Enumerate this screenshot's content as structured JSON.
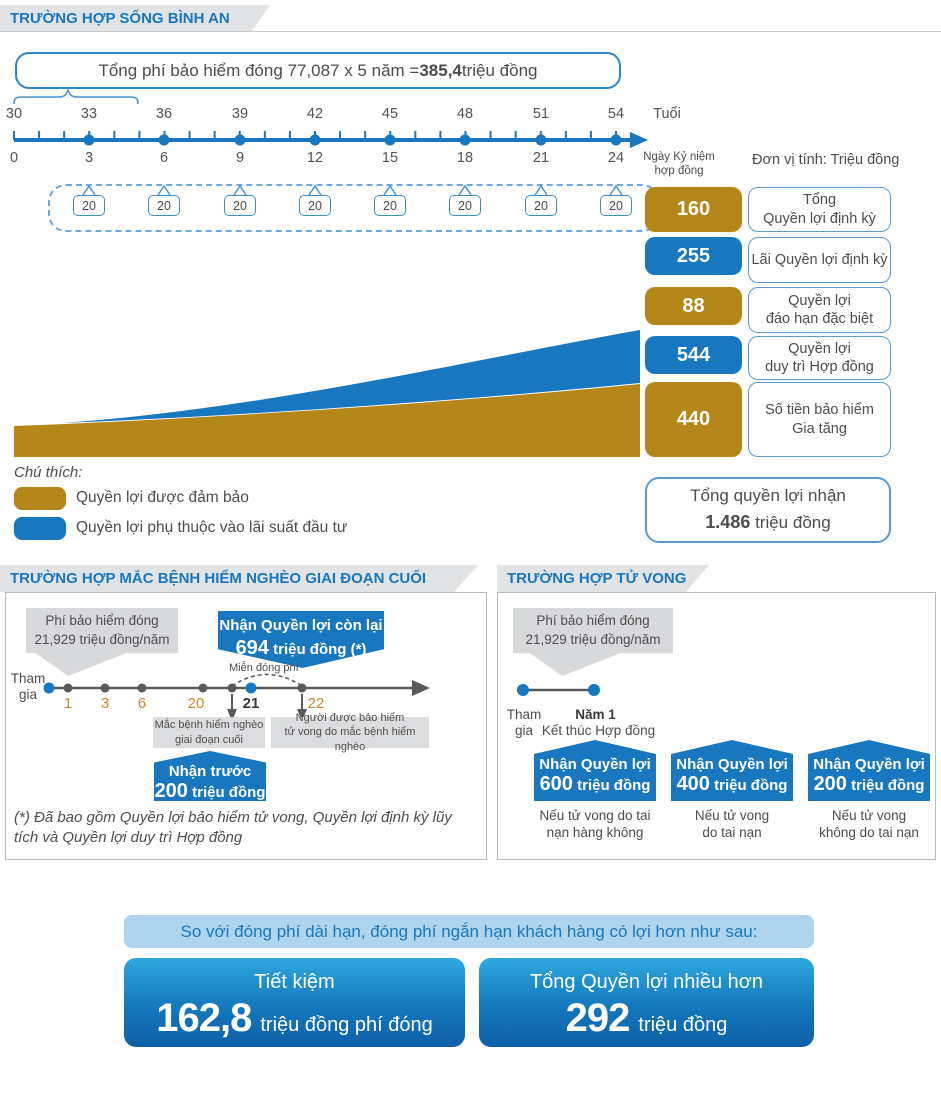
{
  "colors": {
    "blue": "#1877BE",
    "gold": "#B5871A",
    "banner_gray": "#E2E3E5",
    "light_blue": "#AED4EE"
  },
  "section1": {
    "title": "TRƯỜNG HỢP SỐNG BÌNH AN",
    "premium": {
      "prefix": "Tổng phí bảo hiểm đóng 77,087 x 5 năm = ",
      "bold": "385,4",
      "suffix": " triệu đồng"
    },
    "timeline": {
      "ages": [
        "30",
        "33",
        "36",
        "39",
        "42",
        "45",
        "48",
        "51",
        "54"
      ],
      "age_unit": "Tuổi",
      "years": [
        "0",
        "3",
        "6",
        "9",
        "12",
        "15",
        "18",
        "21",
        "24"
      ],
      "year_unit": "Ngày Kỷ niệm\nhợp đồng",
      "payouts": [
        "20",
        "20",
        "20",
        "20",
        "20",
        "20",
        "20",
        "20"
      ]
    },
    "unit_note": "Đơn vị tính: Triệu đồng",
    "benefits": [
      {
        "value": "160",
        "color": "gold",
        "label": "Tổng\nQuyền lợi định kỳ"
      },
      {
        "value": "255",
        "color": "blue",
        "label": "Lãi Quyền lợi định kỳ"
      },
      {
        "value": "88",
        "color": "gold",
        "label": "Quyền lợi\nđáo hạn đặc biệt"
      },
      {
        "value": "544",
        "color": "blue",
        "label": "Quyền lợi\nduy trì Hợp đồng"
      },
      {
        "value": "440",
        "color": "gold",
        "label": "Số tiền bảo hiểm\nGia tăng"
      }
    ],
    "legend_title": "Chú thích:",
    "legend": [
      {
        "color": "gold",
        "label": "Quyền lợi được đảm bảo"
      },
      {
        "color": "blue",
        "label": "Quyền lợi phụ thuộc vào lãi suất đầu tư"
      }
    ],
    "total": {
      "line1": "Tổng quyền lợi nhận",
      "bold": "1.486",
      "suffix": " triệu đồng"
    }
  },
  "section2": {
    "title": "TRƯỜNG HỢP MẮC BỆNH HIỂM NGHÈO GIAI ĐOẠN CUỐI",
    "premium_callout": "Phí bảo hiểm đóng\n21,929 triệu đồng/năm",
    "remaining": {
      "line1": "Nhận Quyền lợi còn lại",
      "bold": "694",
      "suffix": " triệu đồng (*)"
    },
    "waiver": "Miễn đóng phí",
    "start": "Tham\ngia",
    "ticks": [
      {
        "label": "1",
        "em": false
      },
      {
        "label": "3",
        "em": false
      },
      {
        "label": "6",
        "em": false
      },
      {
        "label": "20",
        "em": false
      },
      {
        "label": "21",
        "em": true
      },
      {
        "label": "22",
        "em": false
      }
    ],
    "event1": "Mắc bệnh hiểm nghèo\ngiai đoạn cuối",
    "event2": "Người được bảo hiểm\ntử vong do mắc bệnh hiểm nghèo",
    "advance": {
      "line1": "Nhận trước",
      "bold": "200",
      "suffix": " triệu đồng"
    },
    "footnote": "(*) Đã bao gồm Quyền lợi bảo hiểm tử vong, Quyền lợi định kỳ lũy tích và Quyền lợi duy trì Hợp đồng"
  },
  "section3": {
    "title": "TRƯỜNG HỢP TỬ VONG",
    "premium_callout": "Phí bảo hiểm đóng\n21,929 triệu đồng/năm",
    "start": "Tham\ngia",
    "end_bold": "Năm 1",
    "end_label": "Kết thúc Hợp đồng",
    "houses": [
      {
        "line1": "Nhận Quyền lợi",
        "bold": "600",
        "suffix": " triệu đồng",
        "caption": "Nếu tử vong do tai\nnạn hàng không"
      },
      {
        "line1": "Nhận Quyền lợi",
        "bold": "400",
        "suffix": " triệu đồng",
        "caption": "Nếu tử vong\ndo tai nạn"
      },
      {
        "line1": "Nhận Quyền lợi",
        "bold": "200",
        "suffix": " triệu đồng",
        "caption": "Nếu tử vong\nkhông do tai nạn"
      }
    ]
  },
  "summary": {
    "banner": "So với đóng phí dài hạn, đóng phí ngắn hạn khách hàng có lợi hơn như sau:",
    "cards": [
      {
        "title": "Tiết kiệm",
        "big": "162,8",
        "suffix": "triệu đồng phí đóng"
      },
      {
        "title": "Tổng Quyền lợi nhiều hơn",
        "big": "292",
        "suffix": "triệu đồng"
      }
    ]
  }
}
